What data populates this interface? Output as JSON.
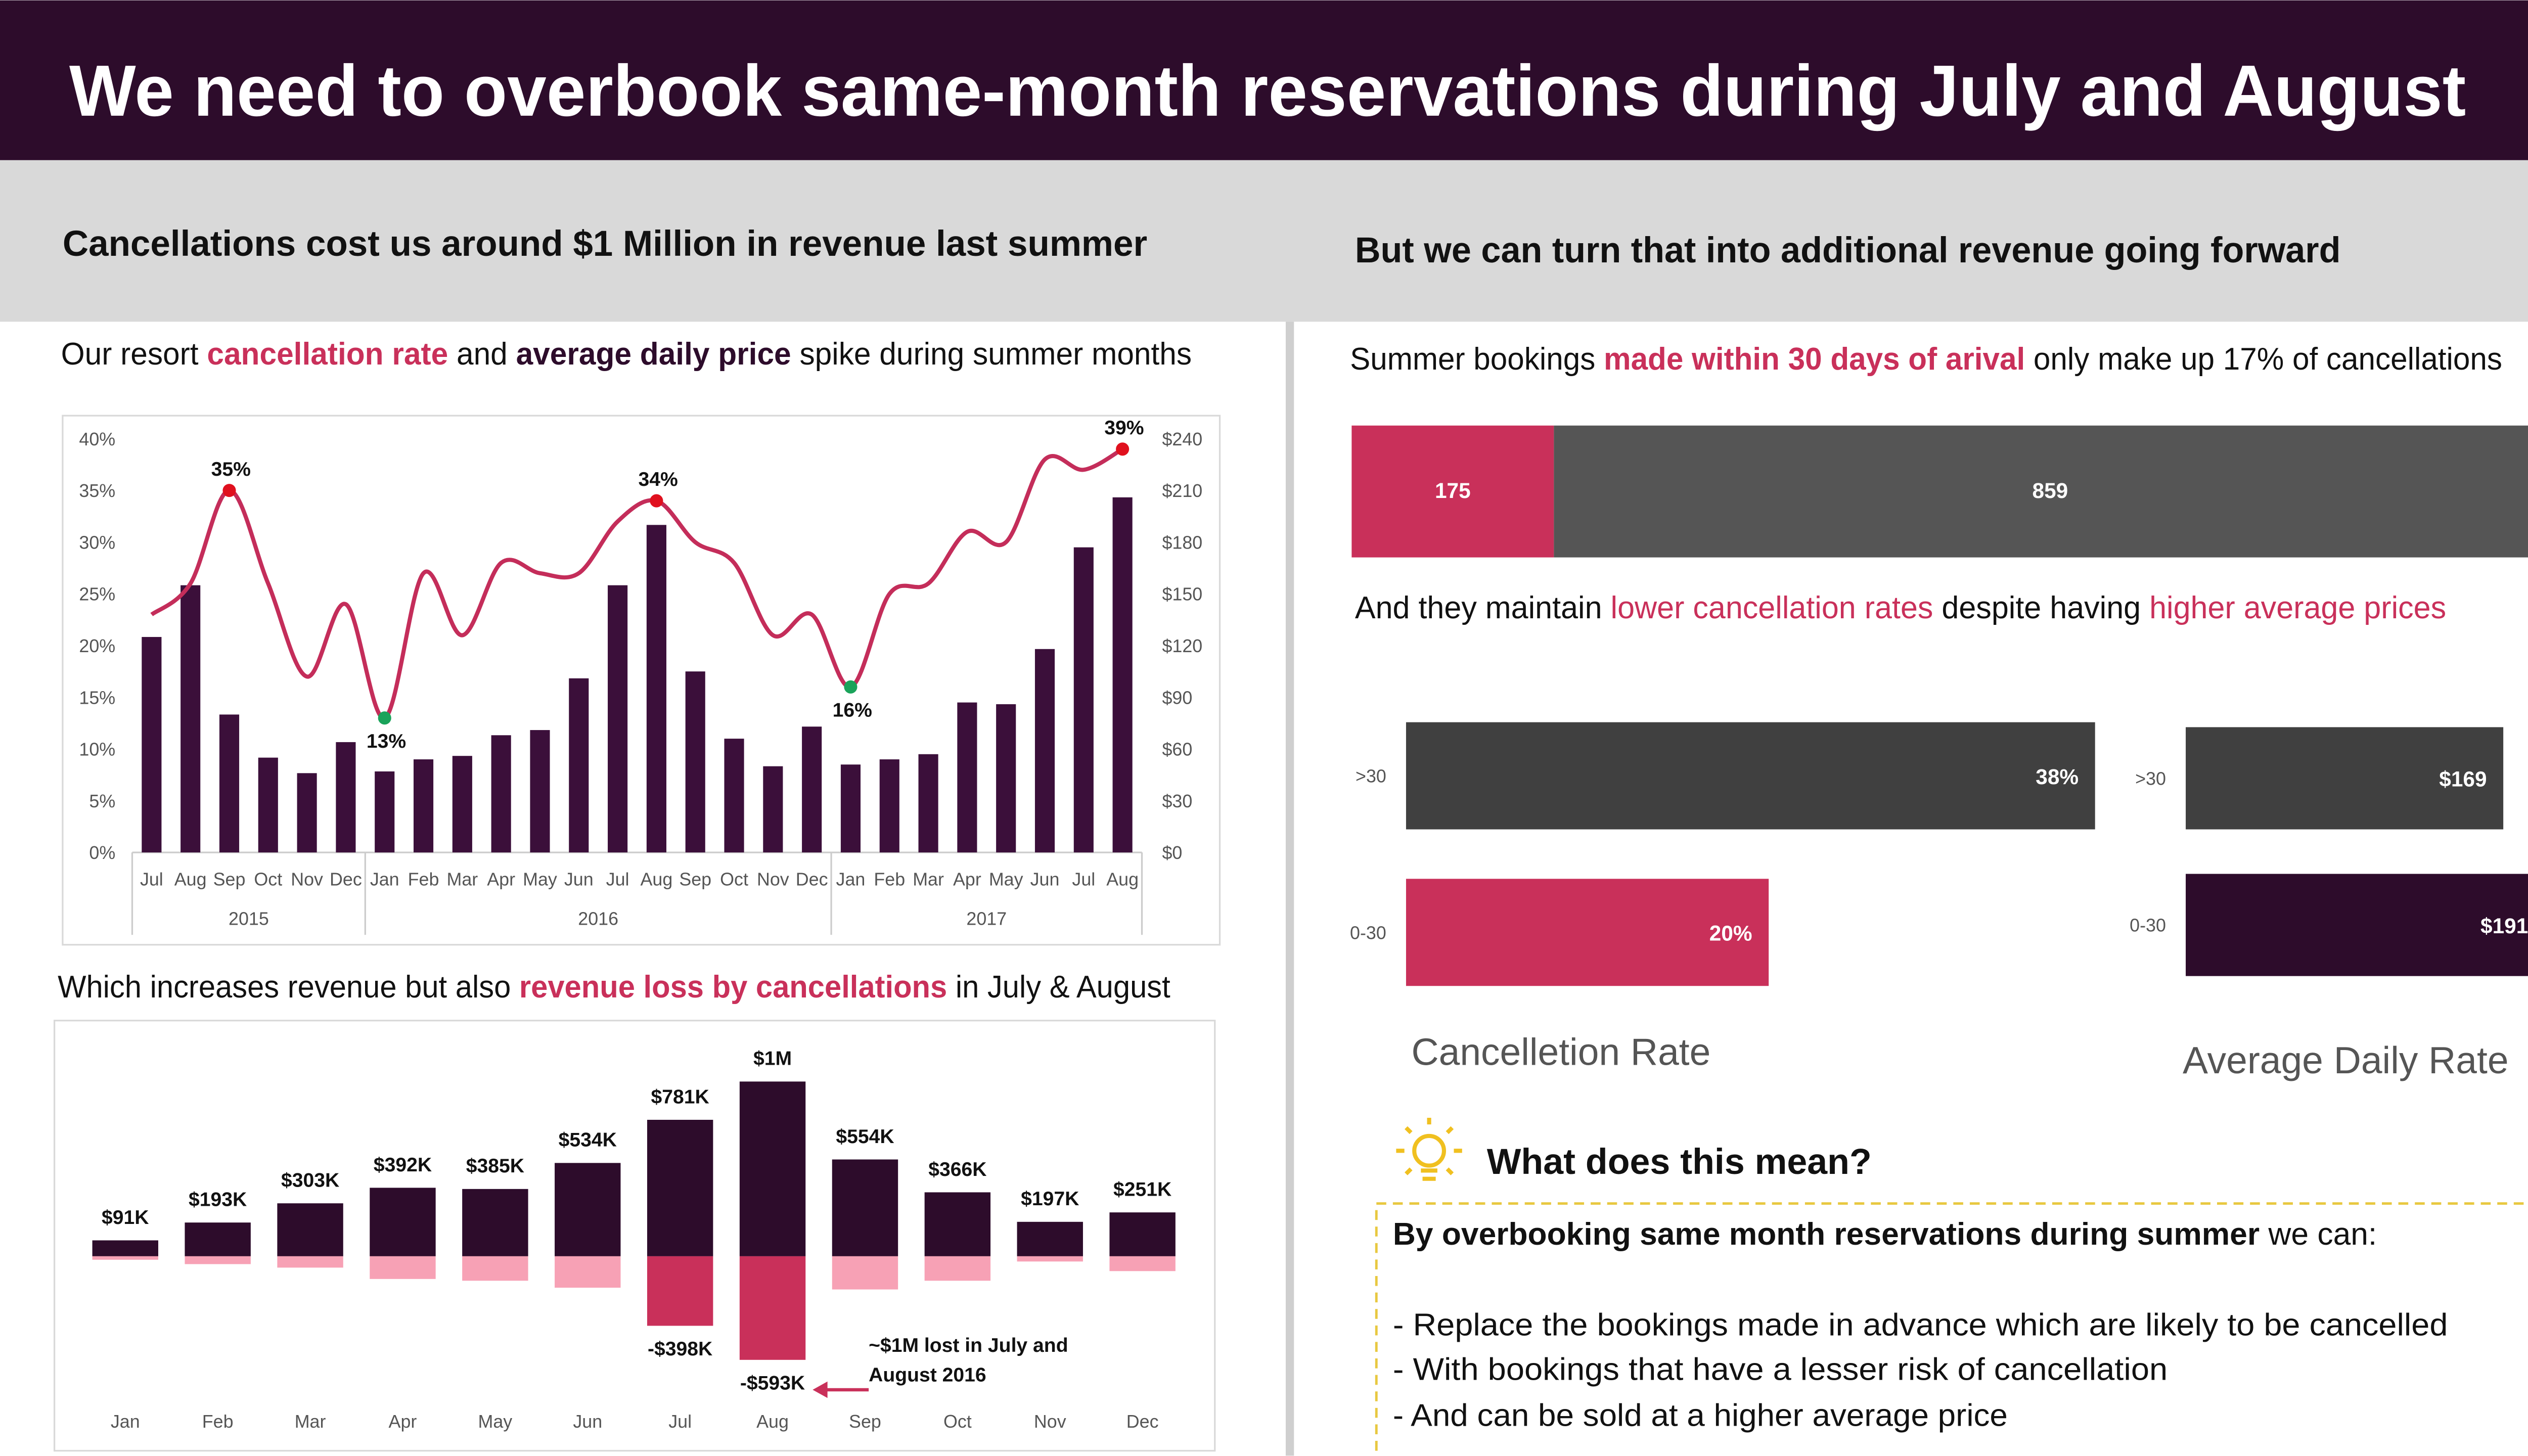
{
  "header": {
    "title": "We need to overbook same-month reservations during July and August"
  },
  "left": {
    "heading": "Cancellations cost us around $1 Million in revenue last summer",
    "intro_1": [
      "Our resort ",
      "cancellation rate",
      " and ",
      "average daily price",
      " spike during summer months"
    ],
    "intro_2": [
      "Which increases revenue but also ",
      "revenue loss by cancellations",
      " in July & August"
    ]
  },
  "right": {
    "heading": "But we can turn that into additional revenue going forward",
    "intro_1": [
      "Summer bookings ",
      "made within 30 days of arival",
      " only make up 17% of cancellations"
    ],
    "intro_2": [
      "And they maintain ",
      "lower cancellation rates",
      " despite having ",
      "higher average prices"
    ]
  },
  "insight": {
    "title": "What does this mean?",
    "lead": [
      "By overbooking same month reservations during summer",
      " we can:"
    ],
    "points": [
      "- Replace the bookings made in advance which are likely to be cancelled",
      "- With bookings that have a lesser risk of cancellation",
      "- And can be sold at a higher average price"
    ]
  },
  "chart_data": [
    {
      "type": "combo",
      "categories": [
        "Jul",
        "Aug",
        "Sep",
        "Oct",
        "Nov",
        "Dec",
        "Jan",
        "Feb",
        "Mar",
        "Apr",
        "May",
        "Jun",
        "Jul",
        "Aug",
        "Sep",
        "Oct",
        "Nov",
        "Dec",
        "Jan",
        "Feb",
        "Mar",
        "Apr",
        "May",
        "Jun",
        "Jul",
        "Aug"
      ],
      "x_groups": [
        "2015",
        "2016",
        "2017"
      ],
      "series": [
        {
          "type": "bar",
          "axis": "y2",
          "color": "#3b0f3a",
          "values": [
            125,
            155,
            80,
            55,
            46,
            64,
            47,
            54,
            56,
            68,
            71,
            101,
            155,
            190,
            105,
            66,
            50,
            73,
            51,
            54,
            57,
            87,
            86,
            118,
            177,
            206
          ]
        },
        {
          "type": "line",
          "color": "#c42d5a",
          "values": [
            23,
            26,
            35,
            26,
            17,
            24,
            13,
            27,
            21,
            28,
            27,
            27,
            32,
            34,
            30,
            28,
            21,
            23,
            16,
            25,
            26,
            31,
            30,
            38,
            37,
            39
          ],
          "value_labels": [
            null,
            null,
            "35%",
            null,
            null,
            null,
            "13%",
            null,
            null,
            null,
            null,
            null,
            null,
            "34%",
            null,
            null,
            null,
            null,
            "16%",
            null,
            null,
            null,
            null,
            null,
            null,
            "39%"
          ],
          "marker_colors": [
            null,
            null,
            "#e0101e",
            null,
            null,
            null,
            "#1aa35a",
            null,
            null,
            null,
            null,
            null,
            null,
            "#e0101e",
            null,
            null,
            null,
            null,
            "#1aa35a",
            null,
            null,
            null,
            null,
            null,
            null,
            "#e0101e"
          ]
        }
      ],
      "ylim": [
        0,
        40
      ],
      "yticks": [
        {
          "value": 0,
          "label": "0%"
        },
        {
          "value": 5,
          "label": "5%"
        },
        {
          "value": 10,
          "label": "10%"
        },
        {
          "value": 15,
          "label": "15%"
        },
        {
          "value": 20,
          "label": "20%"
        },
        {
          "value": 25,
          "label": "25%"
        },
        {
          "value": 30,
          "label": "30%"
        },
        {
          "value": 35,
          "label": "35%"
        },
        {
          "value": 40,
          "label": "40%"
        }
      ],
      "y2lim": [
        0,
        240
      ],
      "y2ticks": [
        {
          "value": 0,
          "label": "$0"
        },
        {
          "value": 30,
          "label": "$30"
        },
        {
          "value": 60,
          "label": "$60"
        },
        {
          "value": 90,
          "label": "$90"
        },
        {
          "value": 120,
          "label": "$120"
        },
        {
          "value": 150,
          "label": "$150"
        },
        {
          "value": 180,
          "label": "$180"
        },
        {
          "value": 210,
          "label": "$210"
        },
        {
          "value": 240,
          "label": "$240"
        }
      ]
    },
    {
      "type": "stacked_bar",
      "categories": [
        "Jan",
        "Feb",
        "Mar",
        "Apr",
        "May",
        "Jun",
        "Jul",
        "Aug",
        "Sep",
        "Oct",
        "Nov",
        "Dec"
      ],
      "annotation": [
        "~$1M lost in July and",
        "August 2016"
      ],
      "series": [
        {
          "color": "#2d0c2b",
          "values": [
            91,
            193,
            303,
            392,
            385,
            534,
            781,
            1000,
            554,
            366,
            197,
            251
          ],
          "value_labels": [
            "$91K",
            "$193K",
            "$303K",
            "$392K",
            "$385K",
            "$534K",
            "$781K",
            "$1M",
            "$554K",
            "$366K",
            "$197K",
            "$251K"
          ]
        },
        {
          "colors": [
            "#f7a1b5",
            "#f7a1b5",
            "#f7a1b5",
            "#f7a1b5",
            "#f7a1b5",
            "#f7a1b5",
            "#c9305a",
            "#c9305a",
            "#f7a1b5",
            "#f7a1b5",
            "#f7a1b5",
            "#f7a1b5"
          ],
          "values": [
            -20,
            -45,
            -65,
            -130,
            -140,
            -180,
            -398,
            -593,
            -190,
            -140,
            -30,
            -85
          ],
          "value_labels": [
            null,
            null,
            null,
            null,
            null,
            null,
            "-$398K",
            "-$593K",
            null,
            null,
            null,
            null
          ]
        }
      ]
    },
    {
      "type": "stacked_hbar",
      "series": [
        {
          "color": "#c9305a",
          "values": [
            175
          ]
        },
        {
          "color": "#555555",
          "values": [
            859
          ]
        }
      ]
    },
    {
      "type": "hbar",
      "title": "Cancelletion Rate",
      "categories": [
        ">30",
        "0-30"
      ],
      "values": [
        38,
        20
      ],
      "value_labels": [
        "38%",
        "20%"
      ],
      "colors": [
        "#404040",
        "#c9305a"
      ]
    },
    {
      "type": "hbar",
      "title": "Average Daily Rate",
      "categories": [
        ">30",
        "0-30"
      ],
      "values": [
        169,
        191
      ],
      "value_labels": [
        "$169",
        "$191"
      ],
      "colors": [
        "#404040",
        "#2d0c2b"
      ]
    }
  ]
}
